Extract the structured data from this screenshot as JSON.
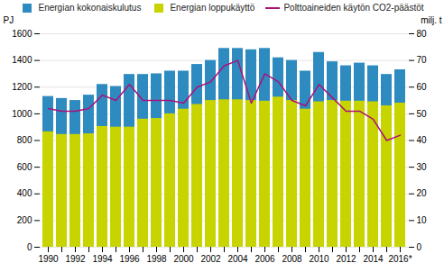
{
  "chart_data": {
    "type": "bar",
    "categories": [
      "1990",
      null,
      "1992",
      null,
      "1994",
      null,
      "1996",
      null,
      "1998",
      null,
      "2000",
      null,
      "2002",
      null,
      "2004",
      null,
      "2006",
      null,
      "2008",
      null,
      "2010",
      null,
      "2012",
      null,
      "2014",
      null,
      "2016*"
    ],
    "series": [
      {
        "name": "Energian kokonaiskulutus",
        "type": "bar",
        "color": "#2E8BC0",
        "values": [
          1130,
          1115,
          1100,
          1140,
          1220,
          1205,
          1295,
          1295,
          1300,
          1320,
          1320,
          1370,
          1400,
          1490,
          1490,
          1480,
          1490,
          1420,
          1400,
          1320,
          1460,
          1390,
          1360,
          1380,
          1360,
          1295,
          1330
        ]
      },
      {
        "name": "Energian loppukäyttö",
        "type": "bar",
        "color": "#C8D400",
        "values": [
          865,
          845,
          845,
          850,
          905,
          900,
          900,
          960,
          965,
          1000,
          1035,
          1070,
          1100,
          1105,
          1105,
          1100,
          1095,
          1125,
          1100,
          1035,
          1090,
          1100,
          1095,
          1095,
          1090,
          1060,
          1080
        ]
      },
      {
        "name": "Polttoaineiden käytön CO2-päästöt",
        "type": "line",
        "axis": "y2",
        "color": "#AA1177",
        "values": [
          52,
          51,
          51,
          52,
          57,
          55,
          61,
          55,
          55,
          55,
          54,
          60,
          62,
          68,
          70,
          54,
          65,
          62,
          55,
          53,
          61,
          56,
          51,
          51,
          48,
          40,
          42
        ]
      }
    ],
    "ylabel": "PJ",
    "y2label": "milj. t",
    "ylim": [
      0,
      1600
    ],
    "yticks": [
      0,
      200,
      400,
      600,
      800,
      1000,
      1200,
      1400,
      1600
    ],
    "y2lim": [
      0,
      80
    ],
    "y2ticks": [
      0,
      10,
      20,
      30,
      40,
      50,
      60,
      70,
      80
    ],
    "stacked": false,
    "grid": true,
    "legend": "top"
  }
}
